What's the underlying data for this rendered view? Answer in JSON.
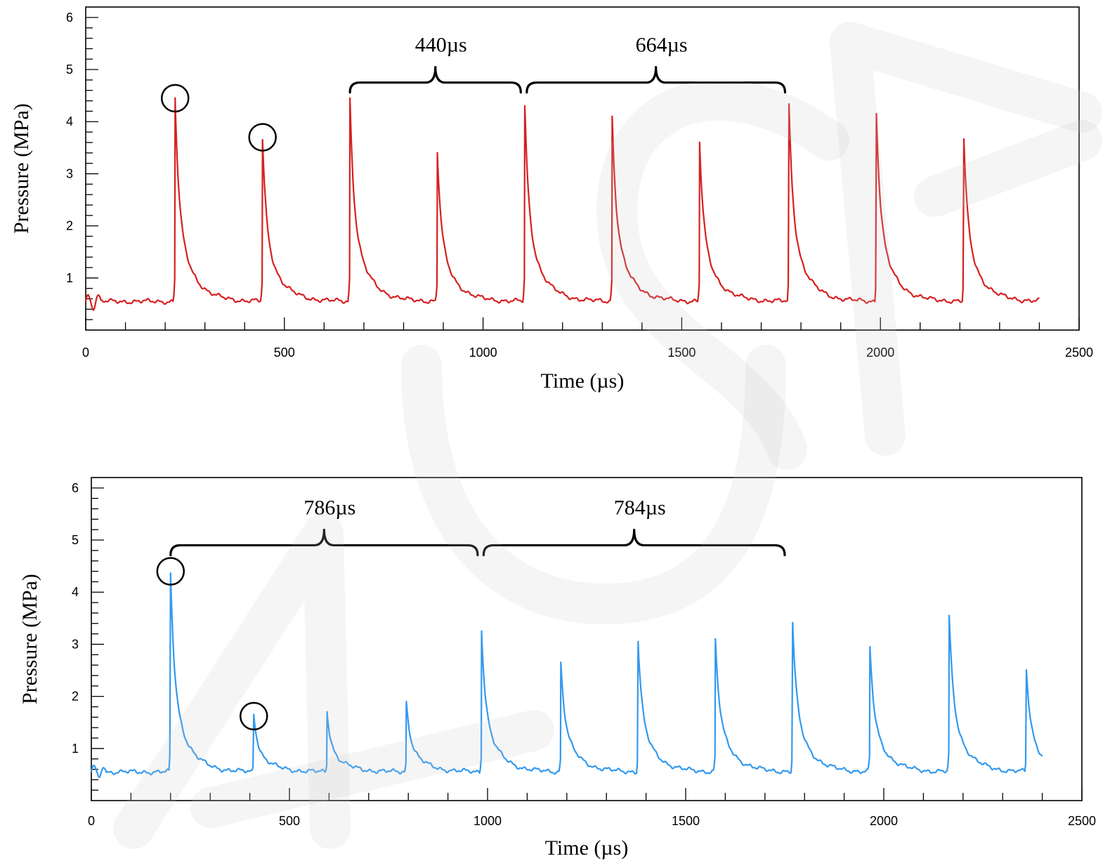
{
  "chart_data": [
    {
      "type": "line",
      "xlabel": "Time (µs)",
      "ylabel": "Pressure (MPa)",
      "xlim": [
        0,
        2500
      ],
      "ylim": [
        0,
        6.2
      ],
      "x_ticks": [
        0,
        500,
        1000,
        1500,
        2000,
        2500
      ],
      "y_ticks": [
        1,
        2,
        3,
        4,
        5,
        6
      ],
      "color": "#d62020",
      "baseline": 0.55,
      "end_time": 2400,
      "peaks": [
        {
          "t": 225,
          "p": 4.45
        },
        {
          "t": 445,
          "p": 3.65
        },
        {
          "t": 665,
          "p": 4.45
        },
        {
          "t": 885,
          "p": 3.4
        },
        {
          "t": 1105,
          "p": 4.3
        },
        {
          "t": 1325,
          "p": 4.1
        },
        {
          "t": 1545,
          "p": 3.6
        },
        {
          "t": 1770,
          "p": 4.3
        },
        {
          "t": 1990,
          "p": 4.15
        },
        {
          "t": 2210,
          "p": 3.65
        }
      ],
      "circled_peaks": [
        {
          "t": 225,
          "p": 4.45
        },
        {
          "t": 445,
          "p": 3.7
        }
      ],
      "intervals": [
        {
          "label": "440µs",
          "start": 665,
          "end": 1095,
          "level": 4.75
        },
        {
          "label": "664µs",
          "start": 1110,
          "end": 1760,
          "level": 4.75
        }
      ]
    },
    {
      "type": "line",
      "xlabel": "Time (µs)",
      "ylabel": "Pressure (MPa)",
      "xlim": [
        0,
        2500
      ],
      "ylim": [
        0,
        6.2
      ],
      "x_ticks": [
        0,
        500,
        1000,
        1500,
        2000,
        2500
      ],
      "y_ticks": [
        1,
        2,
        3,
        4,
        5,
        6
      ],
      "color": "#3399ee",
      "baseline": 0.55,
      "end_time": 2400,
      "peaks": [
        {
          "t": 200,
          "p": 4.35
        },
        {
          "t": 410,
          "p": 1.65
        },
        {
          "t": 595,
          "p": 1.7
        },
        {
          "t": 795,
          "p": 1.9
        },
        {
          "t": 985,
          "p": 3.25
        },
        {
          "t": 1185,
          "p": 2.65
        },
        {
          "t": 1380,
          "p": 3.05
        },
        {
          "t": 1575,
          "p": 3.1
        },
        {
          "t": 1770,
          "p": 3.4
        },
        {
          "t": 1965,
          "p": 2.95
        },
        {
          "t": 2165,
          "p": 3.55
        },
        {
          "t": 2360,
          "p": 2.5
        }
      ],
      "circled_peaks": [
        {
          "t": 200,
          "p": 4.4
        },
        {
          "t": 410,
          "p": 1.62
        }
      ],
      "intervals": [
        {
          "label": "786µs",
          "start": 200,
          "end": 975,
          "level": 4.9
        },
        {
          "label": "784µs",
          "start": 990,
          "end": 1750,
          "level": 4.9
        }
      ]
    }
  ]
}
